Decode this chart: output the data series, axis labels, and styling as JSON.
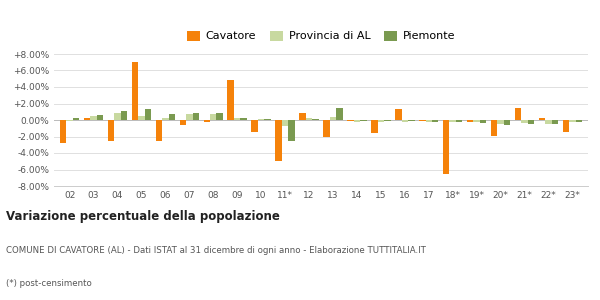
{
  "categories": [
    "02",
    "03",
    "04",
    "05",
    "06",
    "07",
    "08",
    "09",
    "10",
    "11*",
    "12",
    "13",
    "14",
    "15",
    "16",
    "17",
    "18*",
    "19*",
    "20*",
    "21*",
    "22*",
    "23*"
  ],
  "cavatore": [
    -2.8,
    0.3,
    -2.5,
    7.0,
    -2.5,
    -0.6,
    -0.3,
    4.8,
    -1.5,
    -5.0,
    0.8,
    -2.0,
    -0.1,
    -1.6,
    1.3,
    -0.1,
    -6.5,
    -0.2,
    -1.9,
    1.4,
    0.3,
    -1.5
  ],
  "provincia_al": [
    -0.1,
    0.5,
    0.9,
    0.5,
    0.2,
    0.7,
    0.7,
    0.2,
    0.1,
    -0.7,
    0.2,
    0.4,
    -0.2,
    -0.2,
    -0.2,
    -0.2,
    -0.2,
    -0.3,
    -0.5,
    -0.4,
    -0.5,
    -0.3
  ],
  "piemonte": [
    0.2,
    0.6,
    1.1,
    1.3,
    0.7,
    0.9,
    0.8,
    0.2,
    0.1,
    -2.6,
    0.1,
    1.4,
    -0.1,
    -0.1,
    -0.1,
    -0.2,
    -0.2,
    -0.4,
    -0.6,
    -0.5,
    -0.5,
    -0.3
  ],
  "color_cavatore": "#f5820a",
  "color_provincia": "#c8d9a0",
  "color_piemonte": "#7a9a50",
  "title": "Variazione percentuale della popolazione",
  "subtitle": "COMUNE DI CAVATORE (AL) - Dati ISTAT al 31 dicembre di ogni anno - Elaborazione TUTTITALIA.IT",
  "footnote": "(*) post-censimento",
  "legend_cavatore": "Cavatore",
  "legend_provincia": "Provincia di AL",
  "legend_piemonte": "Piemonte",
  "ylim": [
    -8.0,
    8.0
  ],
  "yticks": [
    -8.0,
    -6.0,
    -4.0,
    -2.0,
    0.0,
    2.0,
    4.0,
    6.0,
    8.0
  ],
  "background_color": "#ffffff",
  "grid_color": "#e0e0e0"
}
